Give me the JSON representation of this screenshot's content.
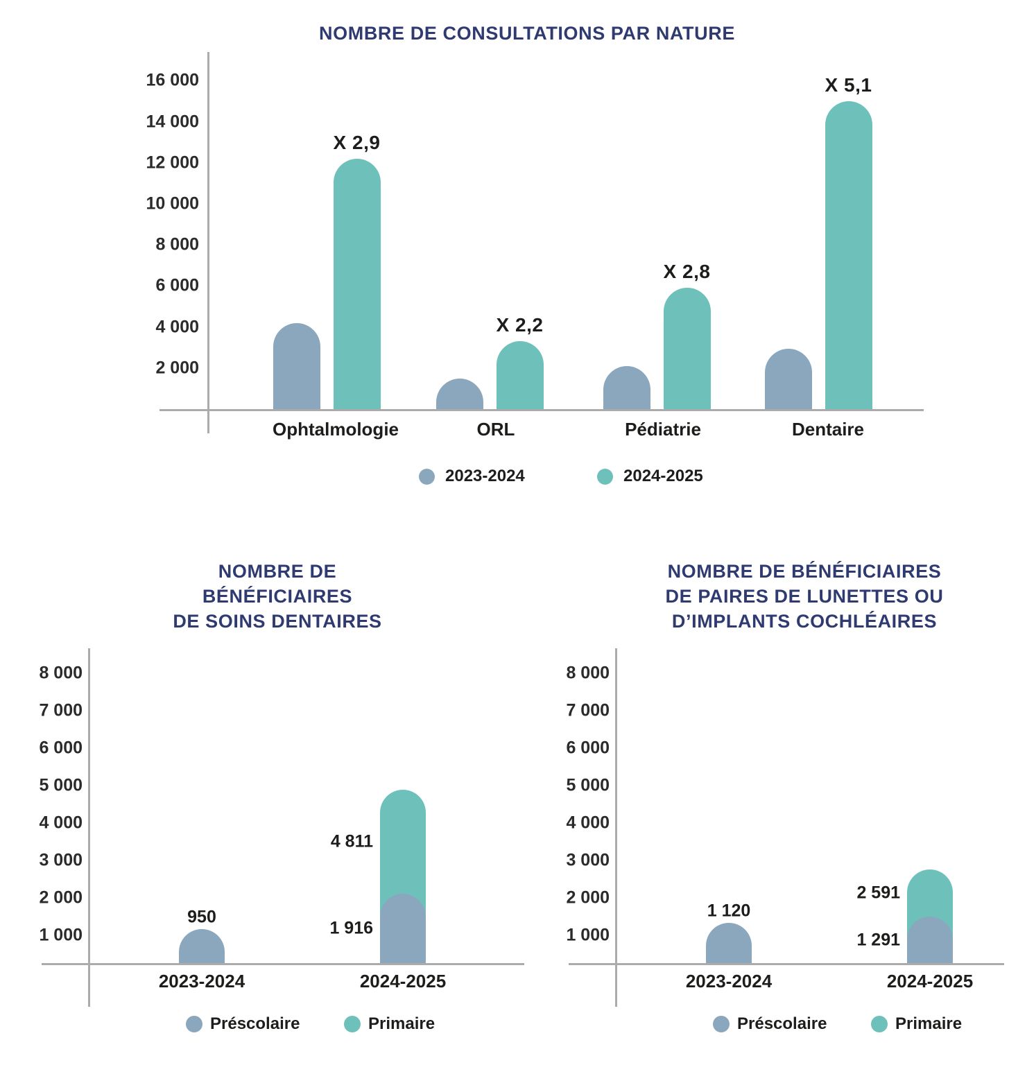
{
  "colors": {
    "navy": "#2F3A70",
    "teal": "#6EC1BA",
    "blue": "#8AA7BE",
    "text": "#1D1D1B",
    "tick": "#2B2B2B",
    "axis": "#ABABAB",
    "background": "#FFFFFF"
  },
  "chart_data": [
    {
      "type": "bar",
      "title": "NOMBRE DE CONSULTATIONS PAR NATURE",
      "title_lines": [
        "NOMBRE DE CONSULTATIONS PAR NATURE"
      ],
      "categories": [
        "Ophtalmologie",
        "ORL",
        "Pédiatrie",
        "Dentaire"
      ],
      "series": [
        {
          "name": "2023-2024",
          "color": "blue",
          "values": [
            4200,
            1500,
            2100,
            2950
          ]
        },
        {
          "name": "2024-2025",
          "color": "teal",
          "values": [
            12200,
            3300,
            5900,
            15000
          ]
        }
      ],
      "annotations": [
        "X 2,9",
        "X 2,2",
        "X 2,8",
        "X 5,1"
      ],
      "ylim": [
        0,
        16000
      ],
      "yticks": [
        {
          "value": 2000,
          "label": "2 000"
        },
        {
          "value": 4000,
          "label": "4 000"
        },
        {
          "value": 6000,
          "label": "6 000"
        },
        {
          "value": 8000,
          "label": "8 000"
        },
        {
          "value": 10000,
          "label": "10 000"
        },
        {
          "value": 12000,
          "label": "12 000"
        },
        {
          "value": 14000,
          "label": "14 000"
        },
        {
          "value": 16000,
          "label": "16 000"
        }
      ],
      "legend_position": "bottom",
      "grid": false
    },
    {
      "type": "bar",
      "title": "NOMBRE DE BÉNÉFICIAIRES DE SOINS DENTAIRES",
      "title_lines": [
        "NOMBRE DE",
        "BÉNÉFICIAIRES",
        "DE SOINS DENTAIRES"
      ],
      "categories": [
        "2023-2024",
        "2024-2025"
      ],
      "series": [
        {
          "name": "Préscolaire",
          "color": "blue",
          "values": [
            950,
            1916
          ],
          "value_labels": [
            "950",
            "1 916"
          ]
        },
        {
          "name": "Primaire",
          "color": "teal",
          "values": [
            null,
            4811
          ],
          "value_labels": [
            null,
            "4 811"
          ]
        }
      ],
      "ylim": [
        0,
        8000
      ],
      "yticks": [
        {
          "value": 1000,
          "label": "1 000"
        },
        {
          "value": 2000,
          "label": "2 000"
        },
        {
          "value": 3000,
          "label": "3 000"
        },
        {
          "value": 4000,
          "label": "4 000"
        },
        {
          "value": 5000,
          "label": "5 000"
        },
        {
          "value": 6000,
          "label": "6 000"
        },
        {
          "value": 7000,
          "label": "7 000"
        },
        {
          "value": 8000,
          "label": "8 000"
        }
      ],
      "legend_position": "bottom",
      "grid": false
    },
    {
      "type": "bar",
      "title": "NOMBRE DE BÉNÉFICIAIRES DE PAIRES DE LUNETTES OU D’IMPLANTS COCHLÉAIRES",
      "title_lines": [
        "NOMBRE DE BÉNÉFICIAIRES",
        "DE PAIRES DE LUNETTES OU",
        "D’IMPLANTS COCHLÉAIRES"
      ],
      "categories": [
        "2023-2024",
        "2024-2025"
      ],
      "series": [
        {
          "name": "Préscolaire",
          "color": "blue",
          "values": [
            1120,
            1291
          ],
          "value_labels": [
            "1 120",
            "1 291"
          ]
        },
        {
          "name": "Primaire",
          "color": "teal",
          "values": [
            null,
            2591
          ],
          "value_labels": [
            null,
            "2 591"
          ]
        }
      ],
      "ylim": [
        0,
        8000
      ],
      "yticks": [
        {
          "value": 1000,
          "label": "1 000"
        },
        {
          "value": 2000,
          "label": "2 000"
        },
        {
          "value": 3000,
          "label": "3 000"
        },
        {
          "value": 4000,
          "label": "4 000"
        },
        {
          "value": 5000,
          "label": "5 000"
        },
        {
          "value": 6000,
          "label": "6 000"
        },
        {
          "value": 7000,
          "label": "7 000"
        },
        {
          "value": 8000,
          "label": "8 000"
        }
      ],
      "legend_position": "bottom",
      "grid": false
    }
  ]
}
